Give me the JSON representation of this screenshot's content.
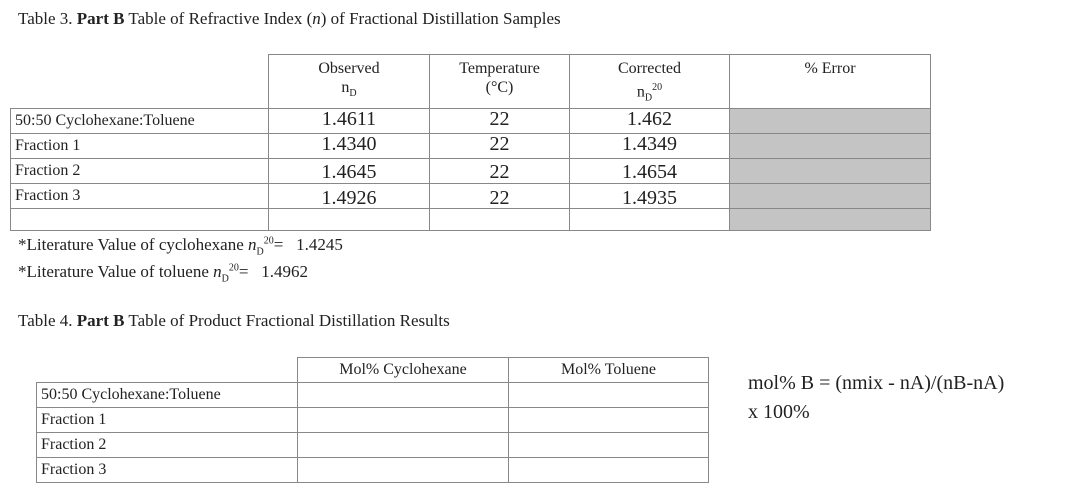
{
  "table3": {
    "label": "Table 3.",
    "bold": "Part B",
    "title_pre": "Table of Refractive Index (",
    "title_var": "n",
    "title_post": ") of Fractional Distillation Samples",
    "headers": {
      "observed_1": "Observed",
      "observed_2_main": "n",
      "observed_2_sub": "D",
      "temp_1": "Temperature",
      "temp_2": "(°C)",
      "corrected_1": "Corrected",
      "corrected_2_main": "n",
      "corrected_2_sub": "D",
      "corrected_2_sup": "20",
      "error": "% Error"
    },
    "rows": [
      {
        "label": "50:50  Cyclohexane:Toluene",
        "observed": "1.4611",
        "temp": "22",
        "corrected": "1.462",
        "error": ""
      },
      {
        "label": "Fraction 1",
        "observed": "1.4340",
        "temp": "22",
        "corrected": "1.4349",
        "error": ""
      },
      {
        "label": "Fraction 2",
        "observed": "1.4645",
        "temp": "22",
        "corrected": "1.4654",
        "error": ""
      },
      {
        "label": "Fraction 3",
        "observed": "1.4926",
        "temp": "22",
        "corrected": "1.4935",
        "error": ""
      },
      {
        "label": "",
        "observed": "",
        "temp": "",
        "corrected": "",
        "error": ""
      }
    ],
    "gray_color": "#c4c4c4"
  },
  "literature": {
    "cyclo_pre": "*Literature Value of cyclohexane ",
    "cyclo_var": "n",
    "cyclo_sub": "D",
    "cyclo_sup": "20",
    "cyclo_eq": "=",
    "cyclo_value": "1.4245",
    "tol_pre": "*Literature Value of toluene ",
    "tol_var": "n",
    "tol_sub": "D",
    "tol_sup": "20",
    "tol_eq": "=",
    "tol_value": "1.4962"
  },
  "table4": {
    "label": "Table 4.",
    "bold": "Part B",
    "title": "Table of Product Fractional Distillation Results",
    "headers": {
      "cyclo": "Mol% Cyclohexane",
      "toluene": "Mol% Toluene"
    },
    "rows": [
      {
        "label": "50:50  Cyclohexane:Toluene",
        "cyclo": "",
        "toluene": ""
      },
      {
        "label": "Fraction 1",
        "cyclo": "",
        "toluene": ""
      },
      {
        "label": "Fraction 2",
        "cyclo": "",
        "toluene": ""
      },
      {
        "label": "Fraction 3",
        "cyclo": "",
        "toluene": ""
      }
    ]
  },
  "formula": {
    "line1": "mol% B = (nmix - nA)/(nB-nA)",
    "line2": "x 100%"
  }
}
